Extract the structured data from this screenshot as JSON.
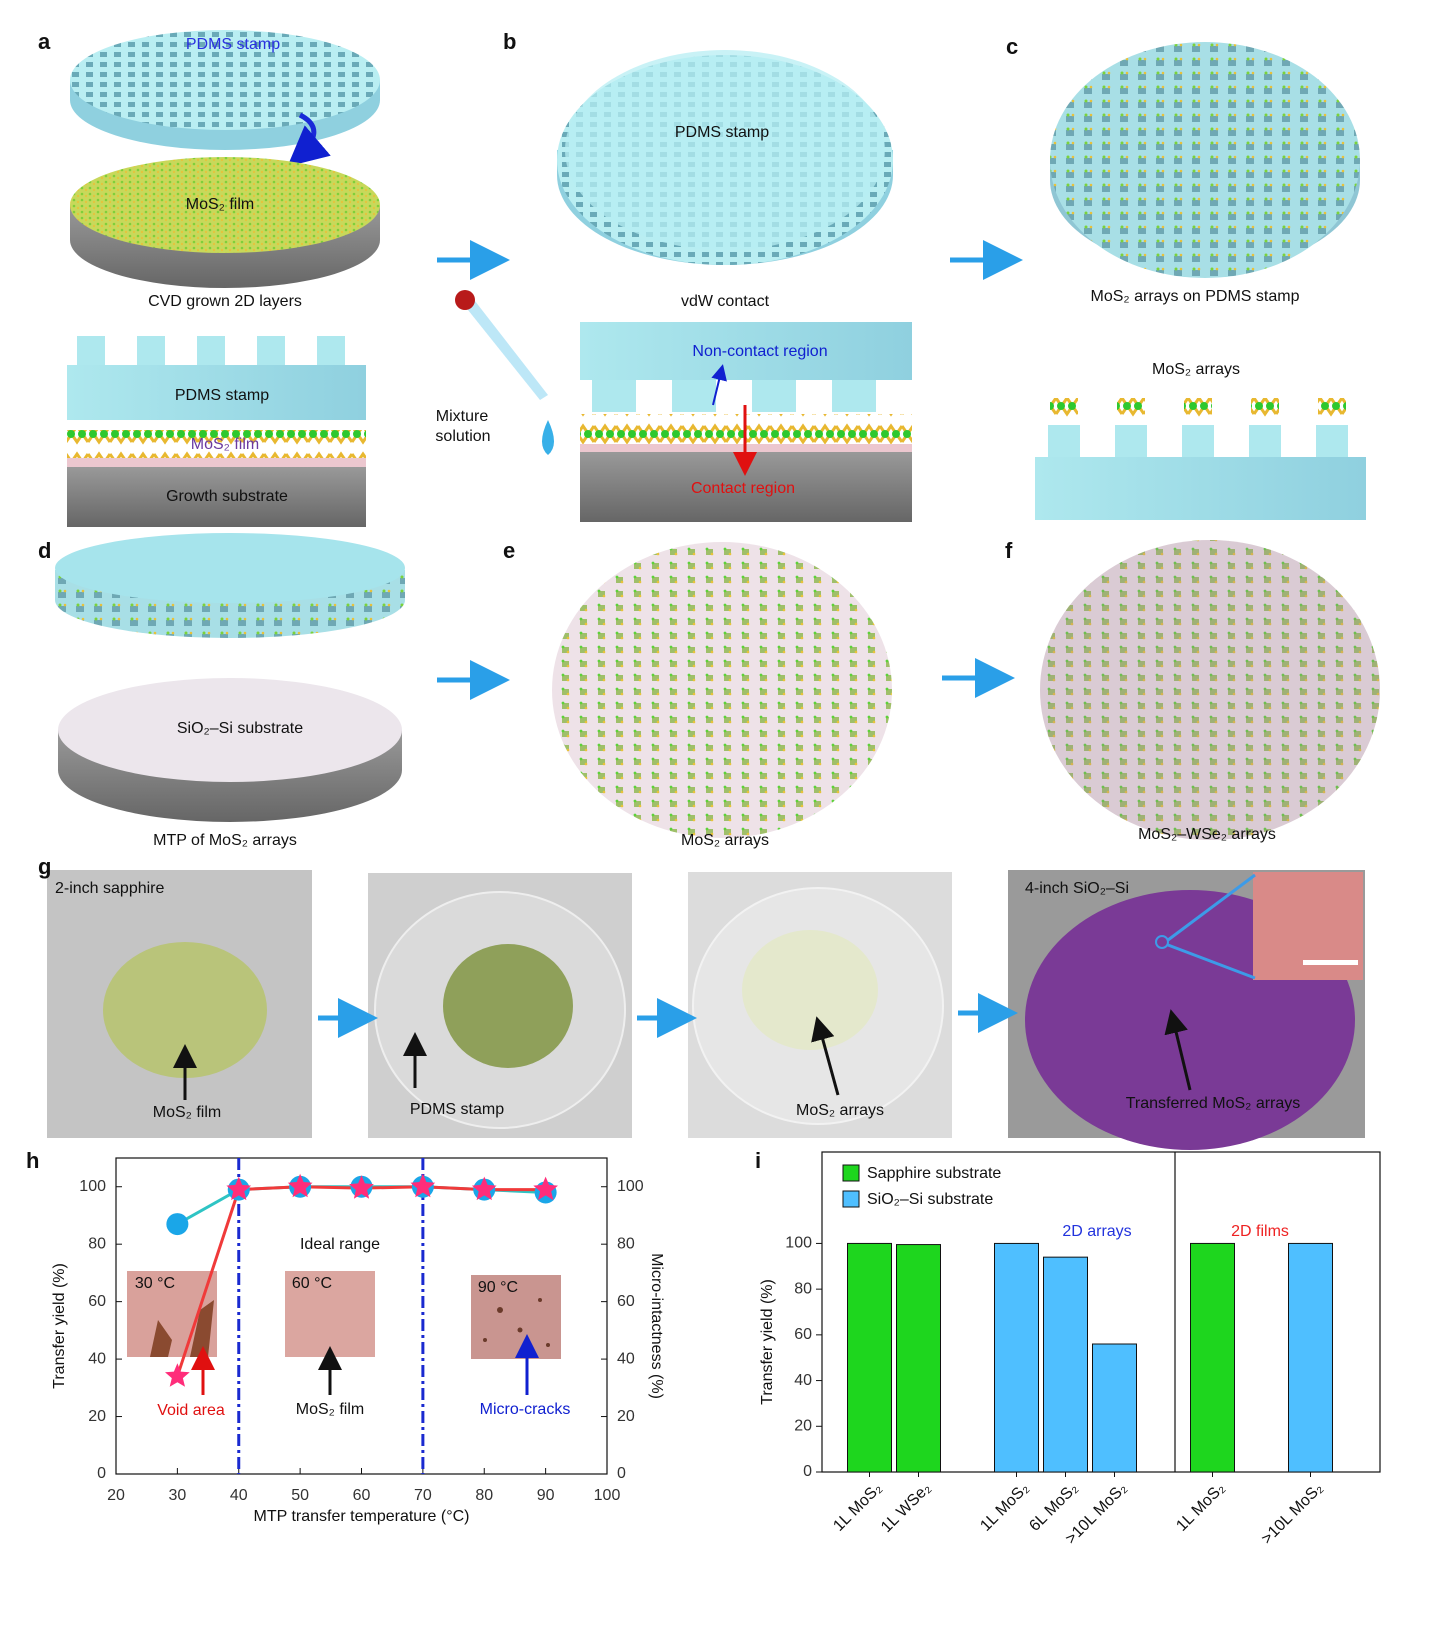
{
  "panels": {
    "a": {
      "label": "a",
      "stamp": "PDMS stamp",
      "film": "MoS₂ film",
      "caption": "CVD grown 2D layers",
      "section_stamp": "PDMS stamp",
      "section_film": "MoS₂ film",
      "section_substrate": "Growth substrate"
    },
    "b": {
      "label": "b",
      "stamp": "PDMS stamp",
      "caption": "vdW contact",
      "solution": [
        "Mixture",
        "solution"
      ],
      "non_contact": "Non-contact region",
      "contact": "Contact region"
    },
    "c": {
      "label": "c",
      "caption": "MoS₂ arrays on PDMS stamp",
      "section_title": "MoS₂ arrays"
    },
    "d": {
      "label": "d",
      "substrate": "SiO₂–Si substrate",
      "caption": "MTP of MoS₂ arrays"
    },
    "e": {
      "label": "e",
      "caption": "MoS₂ arrays"
    },
    "f": {
      "label": "f",
      "caption": "MoS₂–WSe₂ arrays"
    },
    "g": {
      "label": "g",
      "photos": [
        {
          "corner": "2-inch sapphire",
          "pointer": "MoS₂ film"
        },
        {
          "pointer": "PDMS stamp"
        },
        {
          "pointer": "MoS₂ arrays"
        },
        {
          "corner": "4-inch SiO₂–Si",
          "pointer": "Transferred MoS₂ arrays"
        }
      ]
    }
  },
  "chart_data": [
    {
      "type": "line",
      "panel_label": "h",
      "x": [
        30,
        40,
        50,
        60,
        70,
        80,
        90
      ],
      "xlabel": "MTP transfer temperature (°C)",
      "ylabel": "Transfer yield (%)",
      "y2label": "Micro-intactness (%)",
      "xlim": [
        20,
        100
      ],
      "xticks": [
        20,
        30,
        40,
        50,
        60,
        70,
        80,
        90,
        100
      ],
      "ylim": [
        0,
        110
      ],
      "yticks": [
        0,
        20,
        40,
        60,
        80,
        100
      ],
      "y2lim": [
        0,
        110
      ],
      "y2ticks": [
        0,
        20,
        40,
        60,
        80,
        100
      ],
      "series": [
        {
          "color": "#ff2d7a",
          "line_color": "#f03a3a",
          "marker": "star",
          "values": [
            34,
            99,
            100,
            99.5,
            100,
            99,
            99
          ]
        },
        {
          "color": "#1aa6e8",
          "line_color": "#2ec4c4",
          "marker": "circle",
          "axis": "y2",
          "values": [
            87,
            99,
            100,
            100,
            100,
            99,
            98
          ]
        }
      ],
      "vlines": [
        40,
        70
      ],
      "range_label": "Ideal range",
      "insets": [
        {
          "label": "30 °C",
          "pointer": "Void area"
        },
        {
          "label": "60 °C",
          "pointer": "MoS₂ film"
        },
        {
          "label": "90 °C",
          "pointer": "Micro-cracks"
        }
      ]
    },
    {
      "type": "bar",
      "panel_label": "i",
      "categories": [
        "1L MoS₂",
        "1L WSe₂",
        null,
        "1L MoS₂",
        "6L MoS₂",
        ">10L MoS₂",
        null,
        "1L MoS₂",
        null,
        ">10L MoS₂"
      ],
      "ylabel": "Transfer yield (%)",
      "ylim": [
        0,
        140
      ],
      "yticks": [
        0,
        20,
        40,
        60,
        80,
        100
      ],
      "series": [
        {
          "name": "Sapphire substrate",
          "color": "#1ed61e",
          "values": [
            100,
            99.5,
            null,
            null,
            null,
            null,
            null,
            100,
            null,
            null
          ]
        },
        {
          "name": "SiO₂–Si substrate",
          "color": "#4fbfff",
          "values": [
            null,
            null,
            null,
            100,
            94,
            56,
            null,
            null,
            null,
            100
          ]
        }
      ],
      "group_labels": [
        {
          "text": "2D arrays",
          "color": "#2233dd"
        },
        {
          "text": "2D films",
          "color": "#ee2222"
        }
      ]
    }
  ]
}
